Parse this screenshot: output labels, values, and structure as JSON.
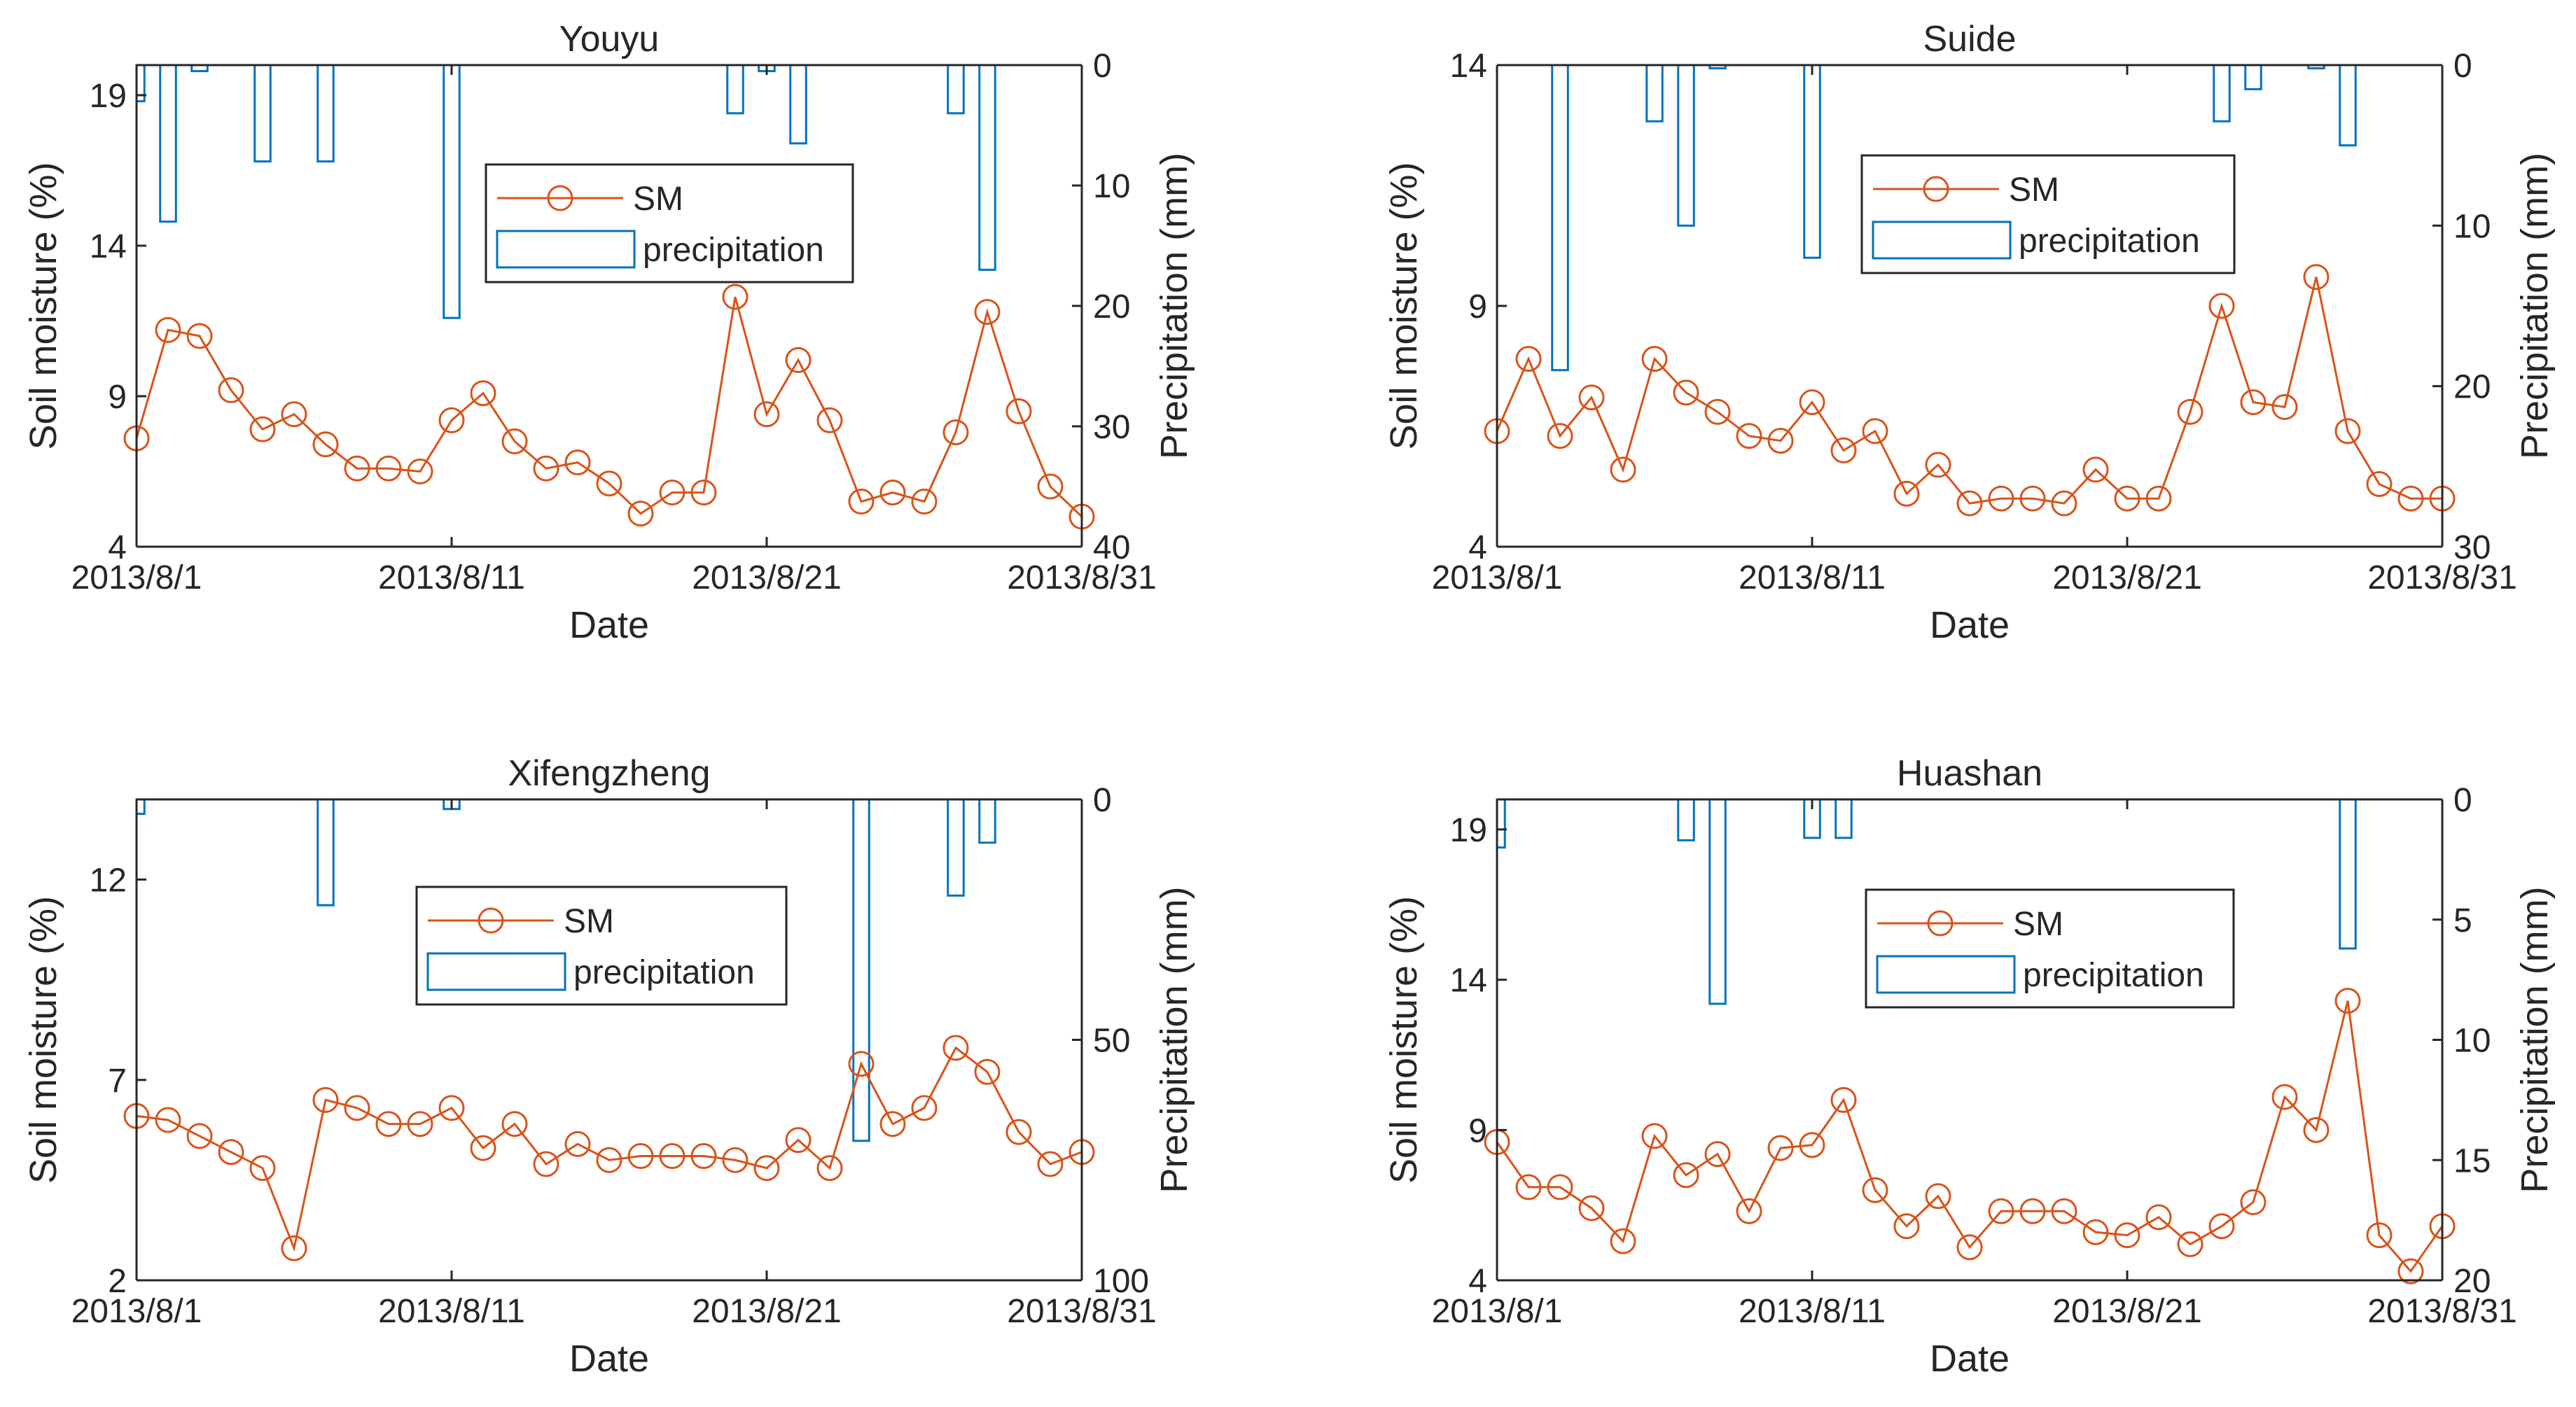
{
  "figure": {
    "colors": {
      "sm": "#D95319",
      "precip": "#0072BD",
      "axes": "#262626"
    }
  },
  "chart_data": [
    {
      "type": "line+bar",
      "title": "Youyu",
      "xlabel": "Date",
      "ylabel": "Soil moisture (%)",
      "y2label": "Precipitation (mm)",
      "x_tick_labels": [
        "2013/8/1",
        "2013/8/11",
        "2013/8/21",
        "2013/8/31"
      ],
      "x_tick_days": [
        1,
        11,
        21,
        31
      ],
      "xlim": [
        1,
        31
      ],
      "ylim": [
        4,
        20
      ],
      "yticks": [
        4,
        9,
        14,
        19
      ],
      "y2lim": [
        0,
        40
      ],
      "y2ticks": [
        0,
        10,
        20,
        30,
        40
      ],
      "legend": [
        "SM",
        "precipitation"
      ],
      "sm_days": [
        1,
        2,
        3,
        4,
        5,
        6,
        7,
        8,
        9,
        10,
        11,
        12,
        13,
        14,
        15,
        16,
        17,
        18,
        19,
        20,
        21,
        22,
        23,
        24,
        25,
        26,
        27,
        28,
        29,
        30,
        31
      ],
      "sm_values": [
        7.6,
        11.2,
        11.0,
        9.2,
        7.9,
        8.4,
        7.4,
        6.6,
        6.6,
        6.5,
        8.2,
        9.1,
        7.5,
        6.6,
        6.8,
        6.1,
        5.1,
        5.8,
        5.8,
        12.3,
        8.4,
        10.2,
        8.2,
        5.5,
        5.8,
        5.5,
        7.8,
        11.8,
        8.5,
        6.0,
        5.0
      ],
      "precip_days": [
        1,
        2,
        3,
        5,
        7,
        11,
        20,
        21,
        22,
        27,
        28
      ],
      "precip_values": [
        3,
        13,
        0.5,
        8,
        8,
        21,
        4,
        0.5,
        6.5,
        4,
        17
      ]
    },
    {
      "type": "line+bar",
      "title": "Suide",
      "xlabel": "Date",
      "ylabel": "Soil moisture (%)",
      "y2label": "Precipitation (mm)",
      "x_tick_labels": [
        "2013/8/1",
        "2013/8/11",
        "2013/8/21",
        "2013/8/31"
      ],
      "x_tick_days": [
        1,
        11,
        21,
        31
      ],
      "xlim": [
        1,
        31
      ],
      "ylim": [
        4,
        14
      ],
      "yticks": [
        4,
        9,
        14
      ],
      "y2lim": [
        0,
        30
      ],
      "y2ticks": [
        0,
        10,
        20,
        30
      ],
      "legend": [
        "SM",
        "precipitation"
      ],
      "sm_days": [
        1,
        2,
        3,
        4,
        5,
        6,
        7,
        8,
        9,
        10,
        11,
        12,
        13,
        14,
        15,
        16,
        17,
        18,
        19,
        20,
        21,
        22,
        23,
        24,
        25,
        26,
        27,
        28,
        29,
        30,
        31
      ],
      "sm_values": [
        6.4,
        7.9,
        6.3,
        7.1,
        5.6,
        7.9,
        7.2,
        6.8,
        6.3,
        6.2,
        7.0,
        6.0,
        6.4,
        5.1,
        5.7,
        4.9,
        5.0,
        5.0,
        4.9,
        5.6,
        5.0,
        5.0,
        6.8,
        9.0,
        7.0,
        6.9,
        9.6,
        6.4,
        5.3,
        5.0,
        5.0
      ],
      "precip_days": [
        3,
        6,
        7,
        8,
        11,
        24,
        25,
        27,
        28
      ],
      "precip_values": [
        19,
        3.5,
        10,
        0.2,
        12,
        3.5,
        1.5,
        0.2,
        5
      ]
    },
    {
      "type": "line+bar",
      "title": "Xifengzheng",
      "xlabel": "Date",
      "ylabel": "Soil moisture (%)",
      "y2label": "Precipitation (mm)",
      "x_tick_labels": [
        "2013/8/1",
        "2013/8/11",
        "2013/8/21",
        "2013/8/31"
      ],
      "x_tick_days": [
        1,
        11,
        21,
        31
      ],
      "xlim": [
        1,
        31
      ],
      "ylim": [
        2,
        14
      ],
      "yticks": [
        2,
        7,
        12
      ],
      "y2lim": [
        0,
        100
      ],
      "y2ticks": [
        0,
        50,
        100
      ],
      "legend": [
        "SM",
        "precipitation"
      ],
      "sm_days": [
        1,
        2,
        3,
        4,
        5,
        6,
        7,
        8,
        9,
        10,
        11,
        12,
        13,
        14,
        15,
        16,
        17,
        18,
        19,
        20,
        21,
        22,
        23,
        24,
        25,
        26,
        27,
        28,
        29,
        30,
        31
      ],
      "sm_values": [
        6.1,
        6.0,
        5.6,
        5.2,
        4.8,
        2.8,
        6.5,
        6.3,
        5.9,
        5.9,
        6.3,
        5.3,
        5.9,
        4.9,
        5.4,
        5.0,
        5.1,
        5.1,
        5.1,
        5.0,
        4.8,
        5.5,
        4.8,
        7.4,
        5.9,
        6.3,
        7.8,
        7.2,
        5.7,
        4.9,
        5.2
      ],
      "precip_days": [
        1,
        7,
        11,
        24,
        27,
        28
      ],
      "precip_values": [
        3,
        22,
        2,
        71,
        20,
        9
      ]
    },
    {
      "type": "line+bar",
      "title": "Huashan",
      "xlabel": "Date",
      "ylabel": "Soil moisture (%)",
      "y2label": "Precipitation (mm)",
      "x_tick_labels": [
        "2013/8/1",
        "2013/8/11",
        "2013/8/21",
        "2013/8/31"
      ],
      "x_tick_days": [
        1,
        11,
        21,
        31
      ],
      "xlim": [
        1,
        31
      ],
      "ylim": [
        4,
        20
      ],
      "yticks": [
        4,
        9,
        14,
        19
      ],
      "y2lim": [
        0,
        20
      ],
      "y2ticks": [
        0,
        5,
        10,
        15,
        20
      ],
      "legend": [
        "SM",
        "precipitation"
      ],
      "sm_days": [
        1,
        2,
        3,
        4,
        5,
        6,
        7,
        8,
        9,
        10,
        11,
        12,
        13,
        14,
        15,
        16,
        17,
        18,
        19,
        20,
        21,
        22,
        23,
        24,
        25,
        26,
        27,
        28,
        29,
        30,
        31
      ],
      "sm_values": [
        8.6,
        7.1,
        7.1,
        6.4,
        5.3,
        8.8,
        7.5,
        8.2,
        6.3,
        8.4,
        8.5,
        10.0,
        7.0,
        5.8,
        6.8,
        5.1,
        6.3,
        6.3,
        6.3,
        5.6,
        5.5,
        6.1,
        5.2,
        5.8,
        6.6,
        10.1,
        9.0,
        13.3,
        5.5,
        4.3,
        5.8
      ],
      "precip_days": [
        1,
        7,
        8,
        11,
        12,
        28
      ],
      "precip_values": [
        2,
        1.7,
        8.5,
        1.6,
        1.6,
        6.2
      ]
    }
  ]
}
